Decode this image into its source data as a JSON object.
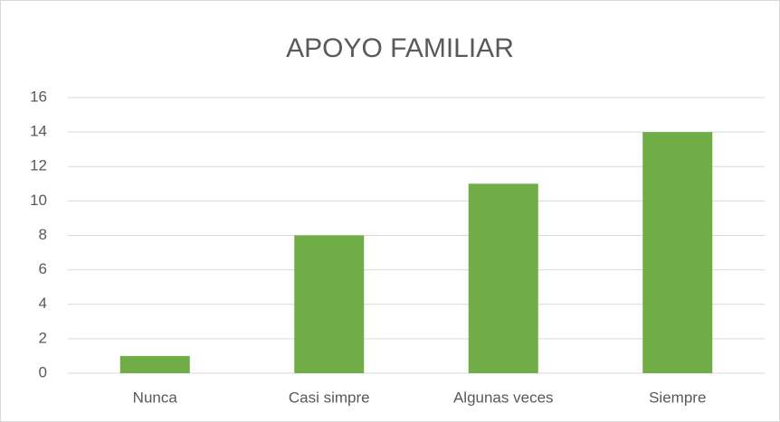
{
  "chart_data": {
    "type": "bar",
    "title": "APOYO FAMILIAR",
    "categories": [
      "Nunca",
      "Casi simpre",
      "Algunas veces",
      "Siempre"
    ],
    "values": [
      1,
      8,
      11,
      14
    ],
    "color": "#70ad47",
    "ylim": [
      0,
      16
    ],
    "yticks": [
      0,
      2,
      4,
      6,
      8,
      10,
      12,
      14,
      16
    ],
    "grid": true
  }
}
